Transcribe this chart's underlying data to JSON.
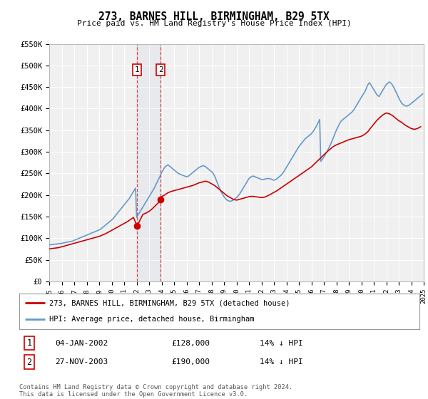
{
  "title": "273, BARNES HILL, BIRMINGHAM, B29 5TX",
  "subtitle": "Price paid vs. HM Land Registry's House Price Index (HPI)",
  "background_color": "#ffffff",
  "plot_bg_color": "#f0f0f0",
  "grid_color": "#ffffff",
  "hpi_color": "#6699cc",
  "price_color": "#cc0000",
  "sale1_date": 2002.04,
  "sale1_price": 128000,
  "sale2_date": 2003.92,
  "sale2_price": 190000,
  "ylim": [
    0,
    550000
  ],
  "yticks": [
    0,
    50000,
    100000,
    150000,
    200000,
    250000,
    300000,
    350000,
    400000,
    450000,
    500000,
    550000
  ],
  "ytick_labels": [
    "£0",
    "£50K",
    "£100K",
    "£150K",
    "£200K",
    "£250K",
    "£300K",
    "£350K",
    "£400K",
    "£450K",
    "£500K",
    "£550K"
  ],
  "legend_entries": [
    "273, BARNES HILL, BIRMINGHAM, B29 5TX (detached house)",
    "HPI: Average price, detached house, Birmingham"
  ],
  "table_rows": [
    [
      "1",
      "04-JAN-2002",
      "£128,000",
      "14% ↓ HPI"
    ],
    [
      "2",
      "27-NOV-2003",
      "£190,000",
      "14% ↓ HPI"
    ]
  ],
  "footnote": "Contains HM Land Registry data © Crown copyright and database right 2024.\nThis data is licensed under the Open Government Licence v3.0.",
  "hpi_x": [
    1995.0,
    1995.083,
    1995.167,
    1995.25,
    1995.333,
    1995.417,
    1995.5,
    1995.583,
    1995.667,
    1995.75,
    1995.833,
    1995.917,
    1996.0,
    1996.083,
    1996.167,
    1996.25,
    1996.333,
    1996.417,
    1996.5,
    1996.583,
    1996.667,
    1996.75,
    1996.833,
    1996.917,
    1997.0,
    1997.083,
    1997.167,
    1997.25,
    1997.333,
    1997.417,
    1997.5,
    1997.583,
    1997.667,
    1997.75,
    1997.833,
    1997.917,
    1998.0,
    1998.083,
    1998.167,
    1998.25,
    1998.333,
    1998.417,
    1998.5,
    1998.583,
    1998.667,
    1998.75,
    1998.833,
    1998.917,
    1999.0,
    1999.083,
    1999.167,
    1999.25,
    1999.333,
    1999.417,
    1999.5,
    1999.583,
    1999.667,
    1999.75,
    1999.833,
    1999.917,
    2000.0,
    2000.083,
    2000.167,
    2000.25,
    2000.333,
    2000.417,
    2000.5,
    2000.583,
    2000.667,
    2000.75,
    2000.833,
    2000.917,
    2001.0,
    2001.083,
    2001.167,
    2001.25,
    2001.333,
    2001.417,
    2001.5,
    2001.583,
    2001.667,
    2001.75,
    2001.833,
    2001.917,
    2002.0,
    2002.083,
    2002.167,
    2002.25,
    2002.333,
    2002.417,
    2002.5,
    2002.583,
    2002.667,
    2002.75,
    2002.833,
    2002.917,
    2003.0,
    2003.083,
    2003.167,
    2003.25,
    2003.333,
    2003.417,
    2003.5,
    2003.583,
    2003.667,
    2003.75,
    2003.833,
    2003.917,
    2004.0,
    2004.083,
    2004.167,
    2004.25,
    2004.333,
    2004.417,
    2004.5,
    2004.583,
    2004.667,
    2004.75,
    2004.833,
    2004.917,
    2005.0,
    2005.083,
    2005.167,
    2005.25,
    2005.333,
    2005.417,
    2005.5,
    2005.583,
    2005.667,
    2005.75,
    2005.833,
    2005.917,
    2006.0,
    2006.083,
    2006.167,
    2006.25,
    2006.333,
    2006.417,
    2006.5,
    2006.583,
    2006.667,
    2006.75,
    2006.833,
    2006.917,
    2007.0,
    2007.083,
    2007.167,
    2007.25,
    2007.333,
    2007.417,
    2007.5,
    2007.583,
    2007.667,
    2007.75,
    2007.833,
    2007.917,
    2008.0,
    2008.083,
    2008.167,
    2008.25,
    2008.333,
    2008.417,
    2008.5,
    2008.583,
    2008.667,
    2008.75,
    2008.833,
    2008.917,
    2009.0,
    2009.083,
    2009.167,
    2009.25,
    2009.333,
    2009.417,
    2009.5,
    2009.583,
    2009.667,
    2009.75,
    2009.833,
    2009.917,
    2010.0,
    2010.083,
    2010.167,
    2010.25,
    2010.333,
    2010.417,
    2010.5,
    2010.583,
    2010.667,
    2010.75,
    2010.833,
    2010.917,
    2011.0,
    2011.083,
    2011.167,
    2011.25,
    2011.333,
    2011.417,
    2011.5,
    2011.583,
    2011.667,
    2011.75,
    2011.833,
    2011.917,
    2012.0,
    2012.083,
    2012.167,
    2012.25,
    2012.333,
    2012.417,
    2012.5,
    2012.583,
    2012.667,
    2012.75,
    2012.833,
    2012.917,
    2013.0,
    2013.083,
    2013.167,
    2013.25,
    2013.333,
    2013.417,
    2013.5,
    2013.583,
    2013.667,
    2013.75,
    2013.833,
    2013.917,
    2014.0,
    2014.083,
    2014.167,
    2014.25,
    2014.333,
    2014.417,
    2014.5,
    2014.583,
    2014.667,
    2014.75,
    2014.833,
    2014.917,
    2015.0,
    2015.083,
    2015.167,
    2015.25,
    2015.333,
    2015.417,
    2015.5,
    2015.583,
    2015.667,
    2015.75,
    2015.833,
    2015.917,
    2016.0,
    2016.083,
    2016.167,
    2016.25,
    2016.333,
    2016.417,
    2016.5,
    2016.583,
    2016.667,
    2016.75,
    2016.833,
    2016.917,
    2017.0,
    2017.083,
    2017.167,
    2017.25,
    2017.333,
    2017.417,
    2017.5,
    2017.583,
    2017.667,
    2017.75,
    2017.833,
    2017.917,
    2018.0,
    2018.083,
    2018.167,
    2018.25,
    2018.333,
    2018.417,
    2018.5,
    2018.583,
    2018.667,
    2018.75,
    2018.833,
    2018.917,
    2019.0,
    2019.083,
    2019.167,
    2019.25,
    2019.333,
    2019.417,
    2019.5,
    2019.583,
    2019.667,
    2019.75,
    2019.833,
    2019.917,
    2020.0,
    2020.083,
    2020.167,
    2020.25,
    2020.333,
    2020.417,
    2020.5,
    2020.583,
    2020.667,
    2020.75,
    2020.833,
    2020.917,
    2021.0,
    2021.083,
    2021.167,
    2021.25,
    2021.333,
    2021.417,
    2021.5,
    2021.583,
    2021.667,
    2021.75,
    2021.833,
    2021.917,
    2022.0,
    2022.083,
    2022.167,
    2022.25,
    2022.333,
    2022.417,
    2022.5,
    2022.583,
    2022.667,
    2022.75,
    2022.833,
    2022.917,
    2023.0,
    2023.083,
    2023.167,
    2023.25,
    2023.333,
    2023.417,
    2023.5,
    2023.583,
    2023.667,
    2023.75,
    2023.833,
    2023.917,
    2024.0,
    2024.083,
    2024.167,
    2024.25,
    2024.333,
    2024.417,
    2024.5,
    2024.583,
    2024.667,
    2024.75,
    2024.833,
    2024.917
  ],
  "hpi_y": [
    84000,
    84500,
    85000,
    85200,
    85500,
    85800,
    86000,
    86500,
    86800,
    87000,
    87200,
    87500,
    88000,
    88500,
    89000,
    89500,
    90000,
    90500,
    91000,
    91500,
    92000,
    92500,
    93000,
    93500,
    95000,
    96000,
    97000,
    98000,
    99000,
    100000,
    101000,
    102000,
    103000,
    104000,
    105000,
    106000,
    107000,
    108000,
    109000,
    110000,
    111000,
    112000,
    113000,
    114000,
    115000,
    116000,
    117000,
    118000,
    119000,
    120000,
    122000,
    124000,
    126000,
    128000,
    130000,
    132000,
    134000,
    136000,
    138000,
    140000,
    142000,
    144000,
    147000,
    150000,
    153000,
    156000,
    159000,
    162000,
    165000,
    168000,
    171000,
    174000,
    177000,
    180000,
    183000,
    186000,
    189000,
    192000,
    196000,
    200000,
    204000,
    208000,
    212000,
    216000,
    148000,
    152000,
    156000,
    160000,
    164000,
    168000,
    172000,
    176000,
    180000,
    184000,
    188000,
    192000,
    196000,
    200000,
    204000,
    208000,
    212000,
    216000,
    221000,
    226000,
    231000,
    236000,
    241000,
    246000,
    252000,
    256000,
    260000,
    264000,
    266000,
    268000,
    270000,
    268000,
    266000,
    264000,
    262000,
    260000,
    258000,
    256000,
    254000,
    252000,
    250000,
    249000,
    248000,
    247000,
    246000,
    245000,
    244000,
    243000,
    242000,
    243000,
    244000,
    246000,
    248000,
    250000,
    252000,
    254000,
    256000,
    258000,
    260000,
    262000,
    264000,
    265000,
    266000,
    267000,
    268000,
    267000,
    266000,
    264000,
    262000,
    260000,
    258000,
    256000,
    254000,
    252000,
    248000,
    244000,
    238000,
    232000,
    226000,
    220000,
    214000,
    208000,
    204000,
    200000,
    196000,
    193000,
    190000,
    188000,
    187000,
    186000,
    185000,
    186000,
    187000,
    188000,
    190000,
    192000,
    194000,
    196000,
    199000,
    202000,
    206000,
    210000,
    214000,
    218000,
    222000,
    226000,
    230000,
    234000,
    238000,
    240000,
    242000,
    243000,
    244000,
    243000,
    242000,
    241000,
    240000,
    239000,
    238000,
    237000,
    236000,
    236000,
    236000,
    237000,
    237000,
    238000,
    238000,
    238000,
    238000,
    237000,
    236000,
    235000,
    234000,
    235000,
    236000,
    238000,
    240000,
    242000,
    244000,
    246000,
    249000,
    252000,
    256000,
    260000,
    264000,
    268000,
    272000,
    276000,
    280000,
    284000,
    288000,
    292000,
    296000,
    300000,
    304000,
    308000,
    312000,
    315000,
    318000,
    321000,
    324000,
    327000,
    330000,
    332000,
    334000,
    336000,
    338000,
    340000,
    342000,
    345000,
    348000,
    352000,
    356000,
    360000,
    365000,
    370000,
    375000,
    278000,
    281000,
    284000,
    288000,
    292000,
    296000,
    300000,
    305000,
    310000,
    315000,
    320000,
    326000,
    332000,
    338000,
    344000,
    350000,
    355000,
    360000,
    365000,
    369000,
    372000,
    374000,
    376000,
    378000,
    380000,
    382000,
    384000,
    386000,
    388000,
    390000,
    392000,
    395000,
    398000,
    402000,
    406000,
    410000,
    414000,
    418000,
    422000,
    426000,
    430000,
    434000,
    438000,
    442000,
    448000,
    454000,
    458000,
    460000,
    456000,
    452000,
    448000,
    444000,
    440000,
    436000,
    432000,
    430000,
    428000,
    432000,
    436000,
    440000,
    444000,
    448000,
    452000,
    456000,
    458000,
    460000,
    462000,
    460000,
    458000,
    454000,
    450000,
    446000,
    440000,
    436000,
    430000,
    425000,
    420000,
    416000,
    412000,
    410000,
    408000,
    407000,
    406000,
    406000,
    407000,
    408000,
    410000,
    412000,
    414000,
    416000,
    418000,
    420000,
    422000,
    424000,
    426000,
    428000,
    430000,
    432000,
    434000,
    436000,
    438000,
    440000
  ],
  "price_x": [
    1995.0,
    1995.25,
    1995.5,
    1995.75,
    1996.0,
    1996.25,
    1996.5,
    1996.75,
    1997.0,
    1997.25,
    1997.5,
    1997.75,
    1998.0,
    1998.25,
    1998.5,
    1998.75,
    1999.0,
    1999.25,
    1999.5,
    1999.75,
    2000.0,
    2000.25,
    2000.5,
    2000.75,
    2001.0,
    2001.25,
    2001.5,
    2001.75,
    2002.04,
    2002.5,
    2002.75,
    2003.0,
    2003.25,
    2003.5,
    2003.75,
    2003.92,
    2004.0,
    2004.25,
    2004.5,
    2004.75,
    2005.0,
    2005.25,
    2005.5,
    2005.75,
    2006.0,
    2006.25,
    2006.5,
    2006.75,
    2007.0,
    2007.25,
    2007.5,
    2007.75,
    2008.0,
    2008.25,
    2008.5,
    2008.75,
    2009.0,
    2009.25,
    2009.5,
    2009.75,
    2010.0,
    2010.25,
    2010.5,
    2010.75,
    2011.0,
    2011.25,
    2011.5,
    2011.75,
    2012.0,
    2012.25,
    2012.5,
    2012.75,
    2013.0,
    2013.25,
    2013.5,
    2013.75,
    2014.0,
    2014.25,
    2014.5,
    2014.75,
    2015.0,
    2015.25,
    2015.5,
    2015.75,
    2016.0,
    2016.25,
    2016.5,
    2016.75,
    2017.0,
    2017.25,
    2017.5,
    2017.75,
    2018.0,
    2018.25,
    2018.5,
    2018.75,
    2019.0,
    2019.25,
    2019.5,
    2019.75,
    2020.0,
    2020.25,
    2020.5,
    2020.75,
    2021.0,
    2021.25,
    2021.5,
    2021.75,
    2022.0,
    2022.25,
    2022.5,
    2022.75,
    2023.0,
    2023.25,
    2023.5,
    2023.75,
    2024.0,
    2024.25,
    2024.5,
    2024.75
  ],
  "price_y": [
    75000,
    76000,
    77000,
    78000,
    80000,
    82000,
    84000,
    86000,
    88000,
    90000,
    92000,
    94000,
    96000,
    98000,
    100000,
    102000,
    104000,
    107000,
    110000,
    114000,
    118000,
    122000,
    126000,
    130000,
    134000,
    138000,
    143000,
    148000,
    128000,
    155000,
    158000,
    162000,
    168000,
    175000,
    182000,
    190000,
    196000,
    200000,
    205000,
    208000,
    210000,
    212000,
    214000,
    216000,
    218000,
    220000,
    222000,
    225000,
    228000,
    230000,
    232000,
    230000,
    226000,
    222000,
    216000,
    210000,
    204000,
    198000,
    194000,
    190000,
    188000,
    190000,
    192000,
    194000,
    196000,
    197000,
    196000,
    195000,
    194000,
    195000,
    198000,
    202000,
    206000,
    210000,
    215000,
    220000,
    225000,
    230000,
    235000,
    240000,
    245000,
    250000,
    255000,
    260000,
    265000,
    272000,
    279000,
    286000,
    293000,
    300000,
    306000,
    312000,
    316000,
    319000,
    322000,
    325000,
    328000,
    330000,
    332000,
    334000,
    336000,
    340000,
    346000,
    355000,
    364000,
    373000,
    380000,
    386000,
    390000,
    388000,
    384000,
    378000,
    372000,
    368000,
    362000,
    358000,
    354000,
    352000,
    354000,
    358000,
    362000,
    366000,
    368000,
    370000
  ]
}
